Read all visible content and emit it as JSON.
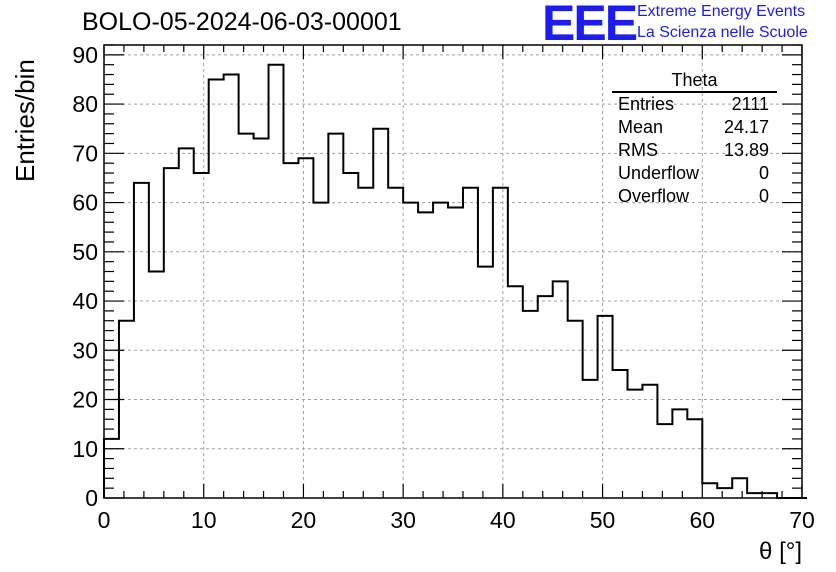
{
  "header": {
    "title": "BOLO-05-2024-06-03-00001",
    "logo_mark": "EEE",
    "logo_line1": "Extreme Energy Events",
    "logo_line2": "La Scienza nelle Scuole"
  },
  "stats_box": {
    "name": "Theta",
    "rows": [
      {
        "label": "Entries",
        "value": "2111"
      },
      {
        "label": "Mean",
        "value": "24.17"
      },
      {
        "label": "RMS",
        "value": "13.89"
      },
      {
        "label": "Underflow",
        "value": "0"
      },
      {
        "label": "Overflow",
        "value": "0"
      }
    ]
  },
  "colors": {
    "line": "#000000",
    "grid": "#a0a0a0",
    "logo": "#1c1cf0"
  },
  "chart_data": {
    "type": "histogram",
    "title": "BOLO-05-2024-06-03-00001",
    "xlabel": "θ [°]",
    "ylabel": "Entries/bin",
    "xlim": [
      0,
      70
    ],
    "ylim": [
      0,
      92
    ],
    "xticks": [
      0,
      10,
      20,
      30,
      40,
      50,
      60,
      70
    ],
    "yticks": [
      0,
      10,
      20,
      30,
      40,
      50,
      60,
      70,
      80,
      90
    ],
    "bin_width": 1.5,
    "bin_edges_start": 0,
    "values": [
      12,
      36,
      64,
      46,
      67,
      71,
      66,
      85,
      86,
      74,
      73,
      88,
      68,
      69,
      60,
      74,
      66,
      63,
      75,
      63,
      60,
      58,
      60,
      59,
      63,
      47,
      63,
      43,
      38,
      41,
      44,
      36,
      24,
      37,
      26,
      22,
      23,
      15,
      18,
      16,
      3,
      2,
      4,
      1,
      1,
      0,
      0
    ],
    "grid": true,
    "legend": "top-right"
  }
}
